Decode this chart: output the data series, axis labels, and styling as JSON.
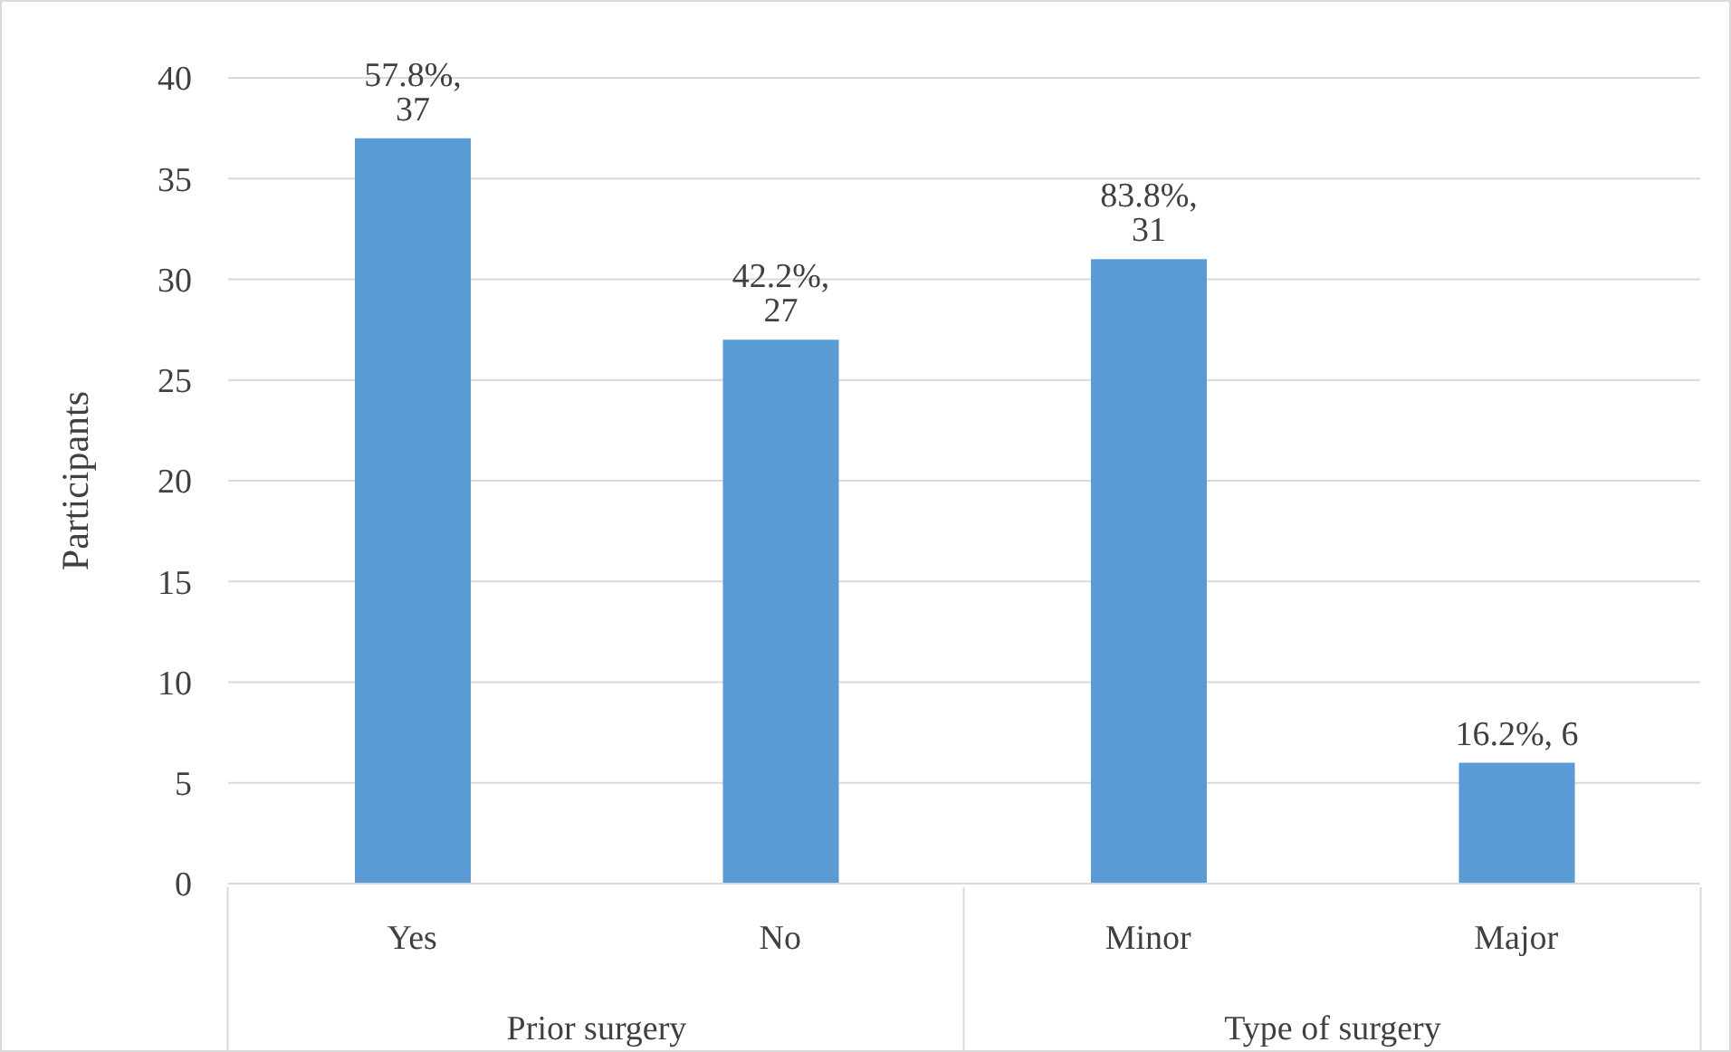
{
  "chart_data": {
    "type": "bar",
    "ylabel": "Participants",
    "categories": [
      "Yes",
      "No",
      "Minor",
      "Major"
    ],
    "values": [
      37,
      27,
      31,
      6
    ],
    "color": "#5b9bd5",
    "value_labels": [
      "57.8%, 37",
      "42.2%, 27",
      "83.8%, 31",
      "16.2%, 6"
    ],
    "annotations": [
      "Prior surgery",
      "Type of surgery"
    ],
    "ylim": [
      0,
      40
    ],
    "yticks": [
      0,
      5,
      10,
      15,
      20,
      25,
      30,
      35,
      40
    ],
    "grid": "y"
  }
}
